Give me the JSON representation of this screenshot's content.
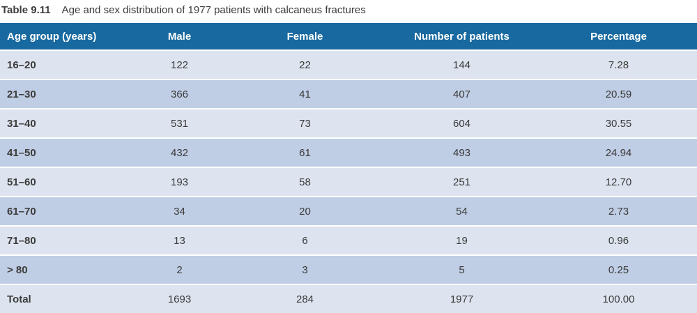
{
  "caption": {
    "label": "Table 9.11",
    "text": "Age and sex distribution of 1977 patients with calcaneus fractures"
  },
  "colors": {
    "header_bg": "#17699f",
    "header_text": "#ffffff",
    "row_light": "#dde4ef",
    "row_dark": "#c0cee5",
    "body_text": "#3a3a3a"
  },
  "chart_data": {
    "type": "table",
    "title": "Age and sex distribution of 1977 patients with calcaneus fractures",
    "columns": [
      "Age group (years)",
      "Male",
      "Female",
      "Number of patients",
      "Percentage"
    ],
    "rows": [
      [
        "16–20",
        "122",
        "22",
        "144",
        "7.28"
      ],
      [
        "21–30",
        "366",
        "41",
        "407",
        "20.59"
      ],
      [
        "31–40",
        "531",
        "73",
        "604",
        "30.55"
      ],
      [
        "41–50",
        "432",
        "61",
        "493",
        "24.94"
      ],
      [
        "51–60",
        "193",
        "58",
        "251",
        "12.70"
      ],
      [
        "61–70",
        "34",
        "20",
        "54",
        "2.73"
      ],
      [
        "71–80",
        "13",
        "6",
        "19",
        "0.96"
      ],
      [
        "> 80",
        "2",
        "3",
        "5",
        "0.25"
      ],
      [
        "Total",
        "1693",
        "284",
        "1977",
        "100.00"
      ]
    ]
  }
}
